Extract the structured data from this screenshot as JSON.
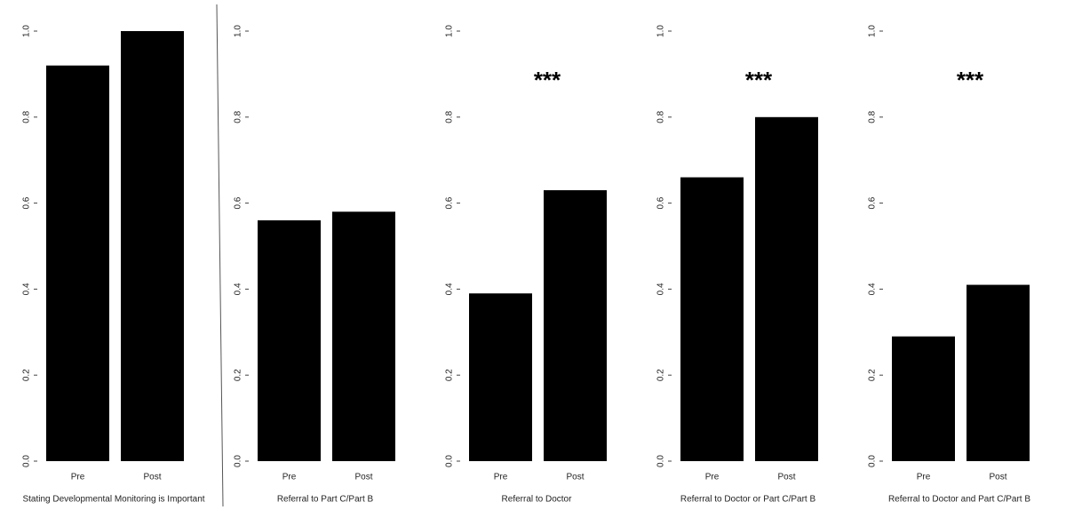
{
  "chart_data": [
    {
      "type": "bar",
      "categories": [
        "Pre",
        "Post"
      ],
      "values": [
        0.92,
        1.0
      ],
      "color": "#000000",
      "xlabel": "Stating Developmental Monitoring is Important",
      "ylim": [
        0,
        1
      ],
      "yticks": [
        {
          "value": 0,
          "label": "0.0"
        },
        0.2,
        0.4,
        0.6,
        0.8,
        {
          "value": 1,
          "label": "1.0"
        }
      ]
    },
    {
      "type": "bar",
      "categories": [
        "Pre",
        "Post"
      ],
      "values": [
        0.56,
        0.58
      ],
      "color": "#000000",
      "xlabel": "Referral to Part C/Part B",
      "ylim": [
        0,
        1
      ],
      "yticks": [
        {
          "value": 0,
          "label": "0.0"
        },
        0.2,
        0.4,
        0.6,
        0.8,
        {
          "value": 1,
          "label": "1.0"
        }
      ]
    },
    {
      "type": "bar",
      "categories": [
        "Pre",
        "Post"
      ],
      "values": [
        0.39,
        0.63
      ],
      "color": "#000000",
      "xlabel": "Referral to Doctor",
      "annotation": "***",
      "ylim": [
        0,
        1
      ],
      "yticks": [
        {
          "value": 0,
          "label": "0.0"
        },
        0.2,
        0.4,
        0.6,
        0.8,
        {
          "value": 1,
          "label": "1.0"
        }
      ]
    },
    {
      "type": "bar",
      "categories": [
        "Pre",
        "Post"
      ],
      "values": [
        0.66,
        0.8
      ],
      "color": "#000000",
      "xlabel": "Referral to Doctor or Part C/Part B",
      "annotation": "***",
      "ylim": [
        0,
        1
      ],
      "yticks": [
        {
          "value": 0,
          "label": "0.0"
        },
        0.2,
        0.4,
        0.6,
        0.8,
        {
          "value": 1,
          "label": "1.0"
        }
      ]
    },
    {
      "type": "bar",
      "categories": [
        "Pre",
        "Post"
      ],
      "values": [
        0.29,
        0.41
      ],
      "color": "#000000",
      "xlabel": "Referral to Doctor and Part C/Part B",
      "annotation": "***",
      "ylim": [
        0,
        1
      ],
      "yticks": [
        {
          "value": 0,
          "label": "0.0"
        },
        0.2,
        0.4,
        0.6,
        0.8,
        {
          "value": 1,
          "label": "1.0"
        }
      ]
    }
  ]
}
